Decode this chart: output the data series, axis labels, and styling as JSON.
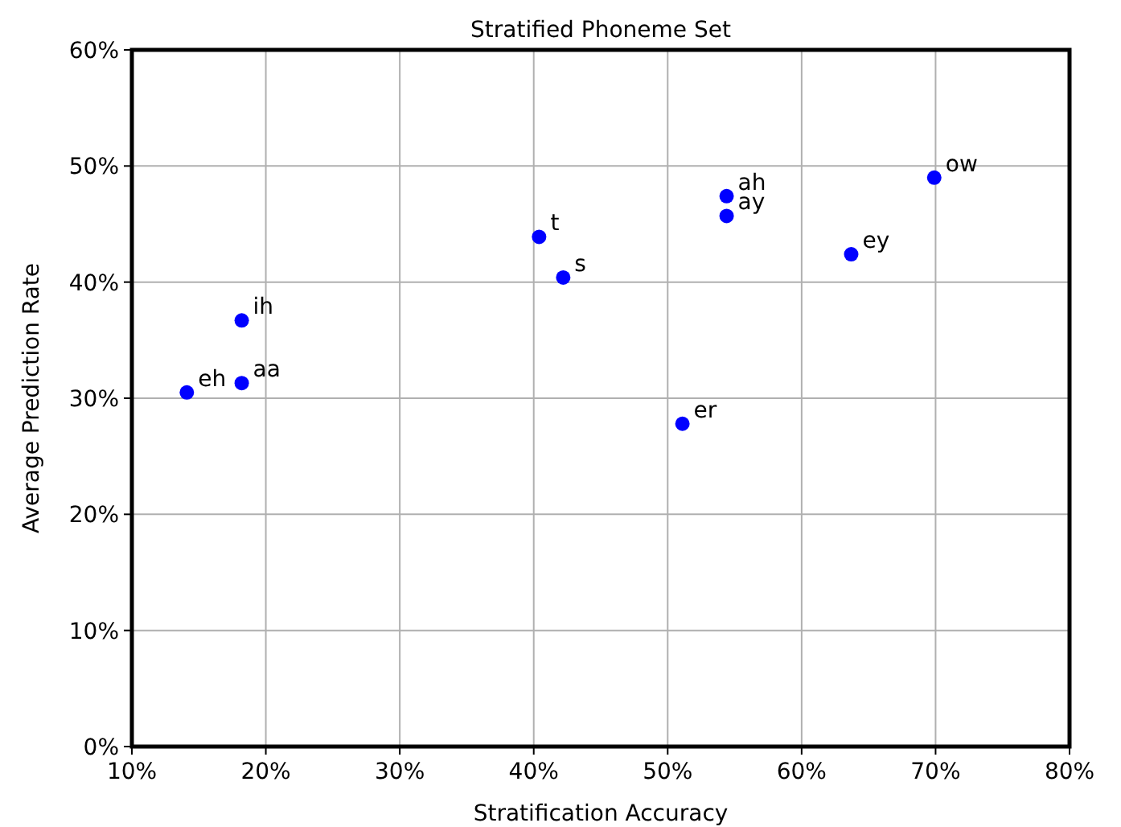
{
  "chart_data": {
    "type": "scatter",
    "title": "Stratified Phoneme Set",
    "xlabel": "Stratification Accuracy",
    "ylabel": "Average Prediction Rate",
    "x": [
      14.1,
      18.2,
      18.2,
      40.4,
      42.2,
      51.1,
      54.4,
      54.4,
      63.7,
      69.9
    ],
    "series": [
      {
        "color": "#0000ff",
        "values": [
          30.5,
          31.3,
          36.7,
          43.9,
          40.4,
          27.8,
          47.4,
          45.7,
          42.4,
          49.0
        ]
      }
    ],
    "annotations": [
      {
        "text": "eh",
        "x": 14.1,
        "y": 30.5
      },
      {
        "text": "aa",
        "x": 18.2,
        "y": 31.3
      },
      {
        "text": "ih",
        "x": 18.2,
        "y": 36.7
      },
      {
        "text": "t",
        "x": 40.4,
        "y": 43.9
      },
      {
        "text": "s",
        "x": 42.2,
        "y": 40.4
      },
      {
        "text": "er",
        "x": 51.1,
        "y": 27.8
      },
      {
        "text": "ah",
        "x": 54.4,
        "y": 47.4
      },
      {
        "text": "ay",
        "x": 54.4,
        "y": 45.7
      },
      {
        "text": "ey",
        "x": 63.7,
        "y": 42.4
      },
      {
        "text": "ow",
        "x": 69.9,
        "y": 49.0
      }
    ],
    "xlim": [
      10,
      80
    ],
    "xticks": [
      {
        "value": 10,
        "label": "10%"
      },
      {
        "value": 20,
        "label": "20%"
      },
      {
        "value": 30,
        "label": "30%"
      },
      {
        "value": 40,
        "label": "40%"
      },
      {
        "value": 50,
        "label": "50%"
      },
      {
        "value": 60,
        "label": "60%"
      },
      {
        "value": 70,
        "label": "70%"
      },
      {
        "value": 80,
        "label": "80%"
      }
    ],
    "ylim": [
      0,
      60
    ],
    "yticks": [
      {
        "value": 0,
        "label": "0%"
      },
      {
        "value": 10,
        "label": "10%"
      },
      {
        "value": 20,
        "label": "20%"
      },
      {
        "value": 30,
        "label": "30%"
      },
      {
        "value": 40,
        "label": "40%"
      },
      {
        "value": 50,
        "label": "50%"
      },
      {
        "value": 60,
        "label": "60%"
      }
    ],
    "grid": true,
    "marker": "circle"
  }
}
